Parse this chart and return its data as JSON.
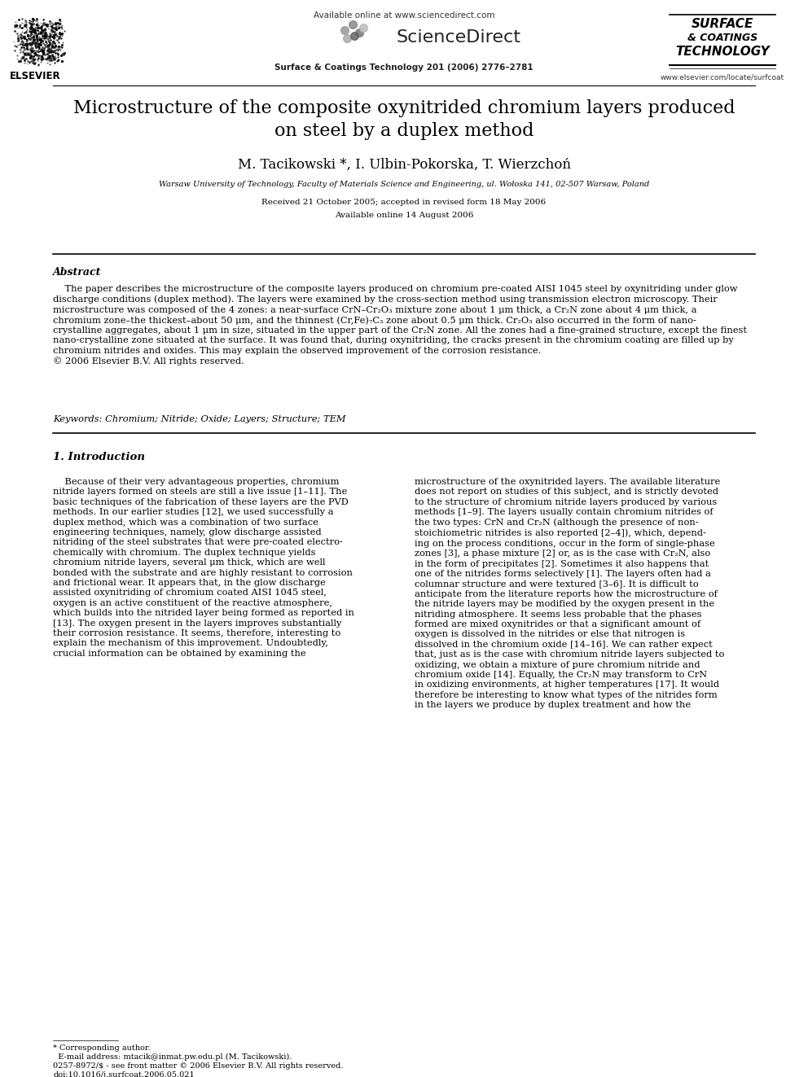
{
  "page_width": 9.92,
  "page_height": 13.23,
  "bg_color": "#ffffff",
  "available_online": "Available online at www.sciencedirect.com",
  "sciencedirect": "ScienceDirect",
  "journal_line": "Surface & Coatings Technology 201 (2006) 2776–2781",
  "website": "www.elsevier.com/locate/surfcoat",
  "elsevier": "ELSEVIER",
  "surf_line1": "SURFACE",
  "surf_line2": "& COATINGS",
  "surf_line3": "TECHNOLOGY",
  "title_line1": "Microstructure of the composite oxynitrided chromium layers produced",
  "title_line2": "on steel by a duplex method",
  "authors": "M. Tacikowski *, I. Ulbin-Pokorska, T. Wierzchoń",
  "affiliation": "Warsaw University of Technology, Faculty of Materials Science and Engineering, ul. Wołoska 141, 02-507 Warsaw, Poland",
  "date_line1": "Received 21 October 2005; accepted in revised form 18 May 2006",
  "date_line2": "Available online 14 August 2006",
  "abstract_title": "Abstract",
  "abstract_indent": "    The paper describes the microstructure of the composite layers produced on chromium pre-coated AISI 1045 steel by oxynitriding under glow\ndischarge conditions (duplex method). The layers were examined by the cross-section method using transmission electron microscopy. Their\nmicrostructure was composed of the 4 zones: a near-surface CrN–Cr₂O₃ mixture zone about 1 μm thick, a Cr₂N zone about 4 μm thick, a\nchromium zone–the thickest–about 50 μm, and the thinnest (Cr,Fe)₇C₃ zone about 0.5 μm thick. Cr₂O₃ also occurred in the form of nano-\ncrystalline aggregates, about 1 μm in size, situated in the upper part of the Cr₂N zone. All the zones had a fine-grained structure, except the finest\nnano-crystalline zone situated at the surface. It was found that, during oxynitriding, the cracks present in the chromium coating are filled up by\nchromium nitrides and oxides. This may explain the observed improvement of the corrosion resistance.\n© 2006 Elsevier B.V. All rights reserved.",
  "keywords": "Keywords: Chromium; Nitride; Oxide; Layers; Structure; TEM",
  "section1_title": "1. Introduction",
  "col1_para": "    Because of their very advantageous properties, chromium\nnitride layers formed on steels are still a live issue [1–11]. The\nbasic techniques of the fabrication of these layers are the PVD\nmethods. In our earlier studies [12], we used successfully a\nduplex method, which was a combination of two surface\nengineering techniques, namely, glow discharge assisted\nnitriding of the steel substrates that were pre-coated electro-\nchemically with chromium. The duplex technique yields\nchromium nitride layers, several μm thick, which are well\nbonded with the substrate and are highly resistant to corrosion\nand frictional wear. It appears that, in the glow discharge\nassisted oxynitriding of chromium coated AISI 1045 steel,\noxygen is an active constituent of the reactive atmosphere,\nwhich builds into the nitrided layer being formed as reported in\n[13]. The oxygen present in the layers improves substantially\ntheir corrosion resistance. It seems, therefore, interesting to\nexplain the mechanism of this improvement. Undoubtedly,\ncrucial information can be obtained by examining the",
  "col2_para": "microstructure of the oxynitrided layers. The available literature\ndoes not report on studies of this subject, and is strictly devoted\nto the structure of chromium nitride layers produced by various\nmethods [1–9]. The layers usually contain chromium nitrides of\nthe two types: CrN and Cr₂N (although the presence of non-\nstoichiometric nitrides is also reported [2–4]), which, depend-\ning on the process conditions, occur in the form of single-phase\nzones [3], a phase mixture [2] or, as is the case with Cr₂N, also\nin the form of precipitates [2]. Sometimes it also happens that\none of the nitrides forms selectively [1]. The layers often had a\ncolumnar structure and were textured [3–6]. It is difficult to\nanticipate from the literature reports how the microstructure of\nthe nitride layers may be modified by the oxygen present in the\nnitriding atmosphere. It seems less probable that the phases\nformed are mixed oxynitrides or that a significant amount of\noxygen is dissolved in the nitrides or else that nitrogen is\ndissolved in the chromium oxide [14–16]. We can rather expect\nthat, just as is the case with chromium nitride layers subjected to\noxidizing, we obtain a mixture of pure chromium nitride and\nchromium oxide [14]. Equally, the Cr₂N may transform to CrN\nin oxidizing environments, at higher temperatures [17]. It would\ntherefore be interesting to know what types of the nitrides form\nin the layers we produce by duplex treatment and how the",
  "footer_note": "* Corresponding author.\n  E-mail address: mtacik@inmat.pw.edu.pl (M. Tacikowski).",
  "footer_copy": "0257-8972/$ - see front matter © 2006 Elsevier B.V. All rights reserved.\ndoi:10.1016/j.surfcoat.2006.05.021"
}
